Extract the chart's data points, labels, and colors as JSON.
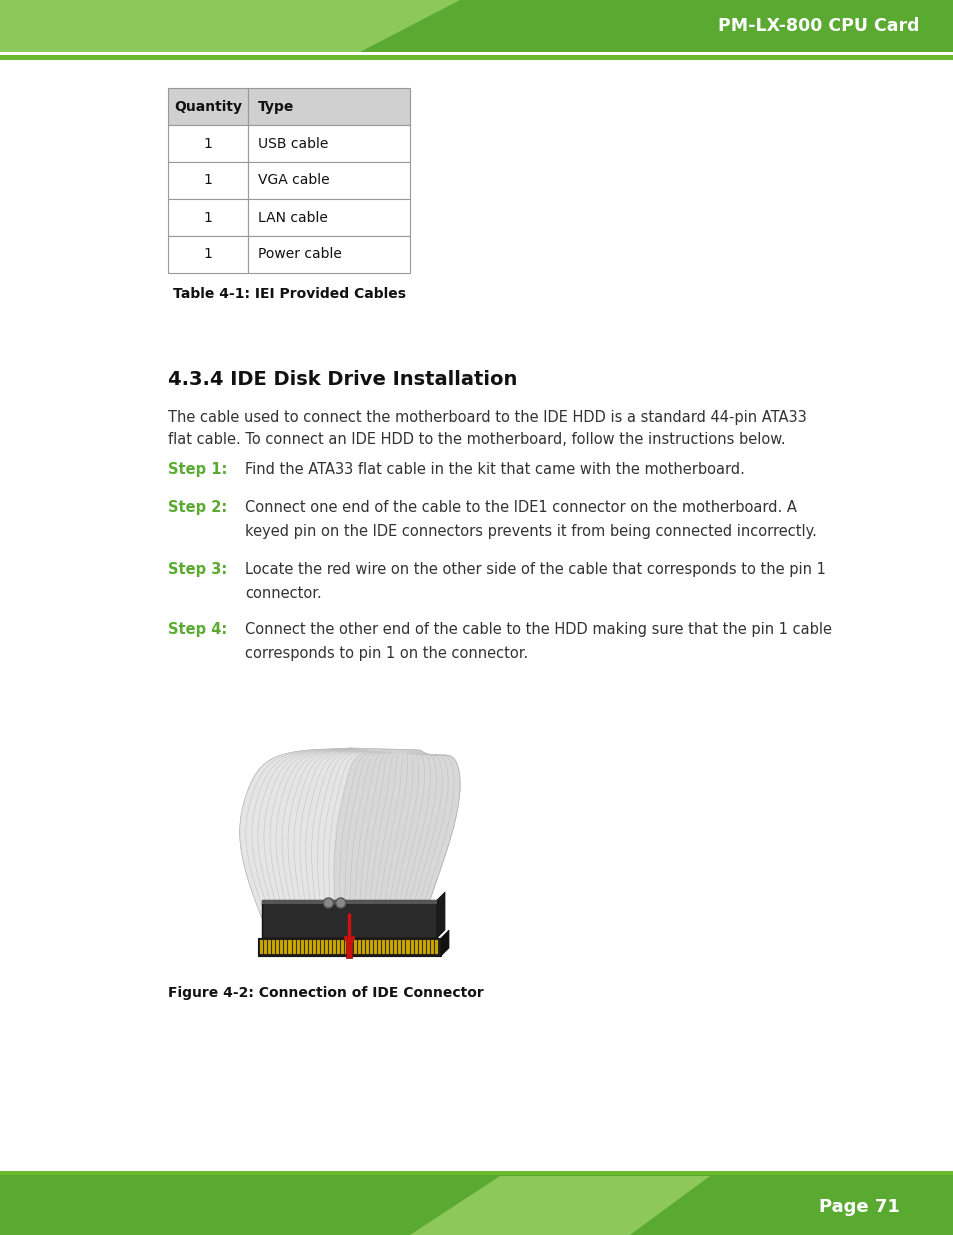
{
  "header_text": "PM-LX-800 CPU Card",
  "footer_text": "Page 71",
  "header_dark_green": "#5aaa32",
  "header_light_green": "#8dc85a",
  "line_green": "#6ab830",
  "table_header_bg": "#d0d0d0",
  "table_border": "#888888",
  "table_caption": "Table 4-1: IEI Provided Cables",
  "table_quantities": [
    "Quantity",
    "1",
    "1",
    "1",
    "1"
  ],
  "table_types": [
    "Type",
    "USB cable",
    "VGA cable",
    "LAN cable",
    "Power cable"
  ],
  "section_title": "4.3.4 IDE Disk Drive Installation",
  "body_line1": "The cable used to connect the motherboard to the IDE HDD is a standard 44-pin ATA33",
  "body_line2": "flat cable. To connect an IDE HDD to the motherboard, follow the instructions below.",
  "step_color": "#5aaa32",
  "step1_label": "Step 1:",
  "step1_text": "Find the ATA33 flat cable in the kit that came with the motherboard.",
  "step2_label": "Step 2:",
  "step2_line1": "Connect one end of the cable to the IDE1 connector on the motherboard. A",
  "step2_line2": "keyed pin on the IDE connectors prevents it from being connected incorrectly.",
  "step3_label": "Step 3:",
  "step3_line1": "Locate the red wire on the other side of the cable that corresponds to the pin 1",
  "step3_line2": "connector.",
  "step4_label": "Step 4:",
  "step4_line1": "Connect the other end of the cable to the HDD making sure that the pin 1 cable",
  "step4_line2": "corresponds to pin 1 on the connector.",
  "figure_caption": "Figure 4-2: Connection of IDE Connector",
  "bg_color": "#ffffff",
  "text_color": "#333333"
}
